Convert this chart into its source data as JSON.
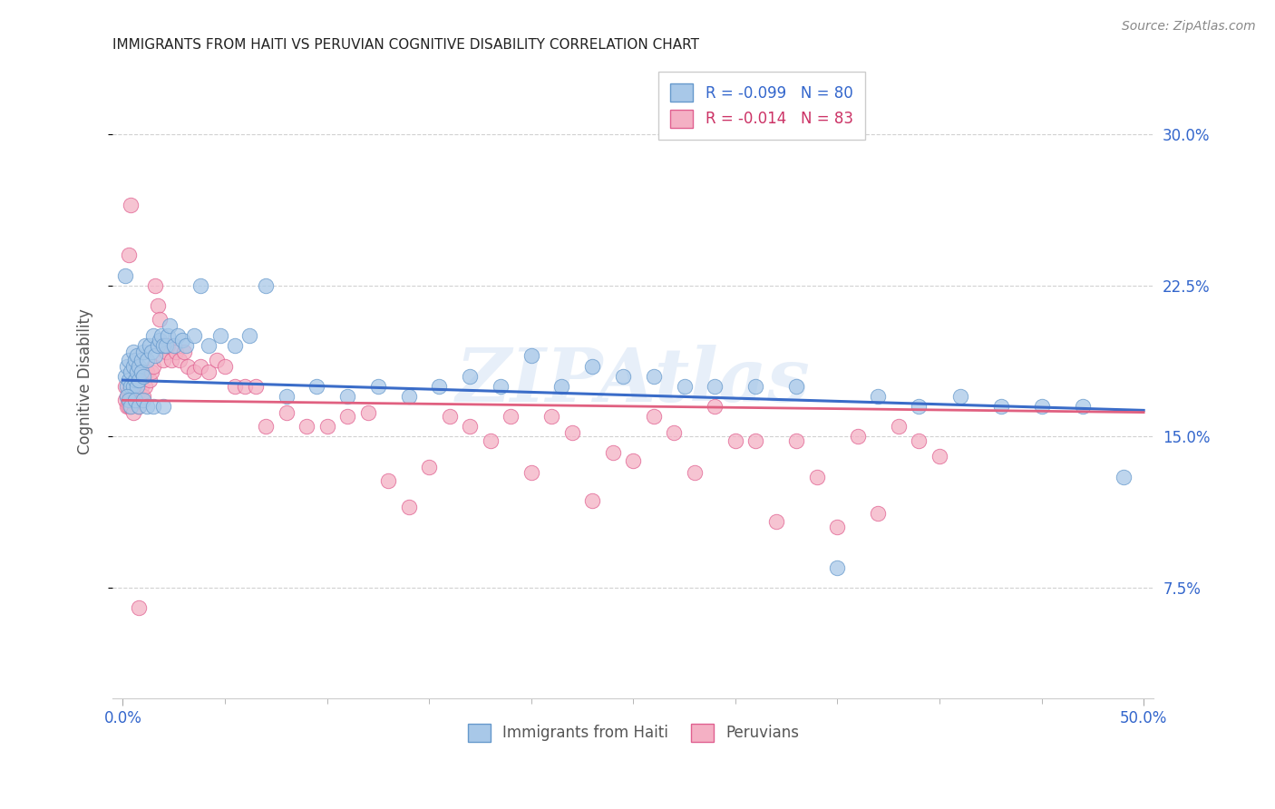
{
  "title": "IMMIGRANTS FROM HAITI VS PERUVIAN COGNITIVE DISABILITY CORRELATION CHART",
  "source": "Source: ZipAtlas.com",
  "ylabel": "Cognitive Disability",
  "xlim": [
    0.0,
    0.5
  ],
  "ylim": [
    0.02,
    0.335
  ],
  "ylabel_ticks": [
    "7.5%",
    "15.0%",
    "22.5%",
    "30.0%"
  ],
  "ylabel_vals": [
    0.075,
    0.15,
    0.225,
    0.3
  ],
  "watermark": "ZIPAtlas",
  "haiti_color": "#a8c8e8",
  "haiti_edge_color": "#6699cc",
  "peru_color": "#f4b0c4",
  "peru_edge_color": "#e06090",
  "haiti_line_color": "#3a6cc8",
  "peru_line_color": "#e06080",
  "grid_color": "#cccccc",
  "bg_color": "#ffffff",
  "haiti_scatter_x": [
    0.001,
    0.001,
    0.002,
    0.002,
    0.003,
    0.003,
    0.004,
    0.004,
    0.005,
    0.005,
    0.005,
    0.006,
    0.006,
    0.007,
    0.007,
    0.007,
    0.008,
    0.008,
    0.009,
    0.009,
    0.01,
    0.01,
    0.011,
    0.012,
    0.013,
    0.014,
    0.015,
    0.016,
    0.017,
    0.018,
    0.019,
    0.02,
    0.021,
    0.022,
    0.023,
    0.025,
    0.027,
    0.029,
    0.031,
    0.035,
    0.038,
    0.042,
    0.048,
    0.055,
    0.062,
    0.07,
    0.08,
    0.095,
    0.11,
    0.125,
    0.14,
    0.155,
    0.17,
    0.185,
    0.2,
    0.215,
    0.23,
    0.245,
    0.26,
    0.275,
    0.29,
    0.31,
    0.33,
    0.35,
    0.37,
    0.39,
    0.41,
    0.43,
    0.45,
    0.47,
    0.49,
    0.002,
    0.003,
    0.004,
    0.006,
    0.008,
    0.01,
    0.012,
    0.015,
    0.02
  ],
  "haiti_scatter_y": [
    0.18,
    0.23,
    0.175,
    0.185,
    0.178,
    0.188,
    0.175,
    0.182,
    0.185,
    0.175,
    0.192,
    0.178,
    0.188,
    0.182,
    0.19,
    0.175,
    0.185,
    0.178,
    0.188,
    0.182,
    0.192,
    0.18,
    0.195,
    0.188,
    0.195,
    0.192,
    0.2,
    0.19,
    0.195,
    0.198,
    0.2,
    0.195,
    0.195,
    0.2,
    0.205,
    0.195,
    0.2,
    0.198,
    0.195,
    0.2,
    0.225,
    0.195,
    0.2,
    0.195,
    0.2,
    0.225,
    0.17,
    0.175,
    0.17,
    0.175,
    0.17,
    0.175,
    0.18,
    0.175,
    0.19,
    0.175,
    0.185,
    0.18,
    0.18,
    0.175,
    0.175,
    0.175,
    0.175,
    0.085,
    0.17,
    0.165,
    0.17,
    0.165,
    0.165,
    0.165,
    0.13,
    0.17,
    0.168,
    0.165,
    0.168,
    0.165,
    0.168,
    0.165,
    0.165,
    0.165
  ],
  "peru_scatter_x": [
    0.001,
    0.001,
    0.002,
    0.002,
    0.003,
    0.003,
    0.004,
    0.004,
    0.005,
    0.005,
    0.005,
    0.006,
    0.006,
    0.007,
    0.007,
    0.008,
    0.008,
    0.009,
    0.009,
    0.01,
    0.01,
    0.011,
    0.012,
    0.013,
    0.014,
    0.015,
    0.016,
    0.017,
    0.018,
    0.019,
    0.02,
    0.021,
    0.022,
    0.024,
    0.026,
    0.028,
    0.03,
    0.032,
    0.035,
    0.038,
    0.042,
    0.046,
    0.05,
    0.055,
    0.06,
    0.065,
    0.07,
    0.08,
    0.09,
    0.1,
    0.11,
    0.12,
    0.13,
    0.14,
    0.15,
    0.16,
    0.17,
    0.18,
    0.19,
    0.2,
    0.21,
    0.22,
    0.23,
    0.24,
    0.25,
    0.26,
    0.27,
    0.28,
    0.29,
    0.3,
    0.31,
    0.32,
    0.33,
    0.34,
    0.35,
    0.36,
    0.37,
    0.38,
    0.39,
    0.4,
    0.003,
    0.004,
    0.008
  ],
  "peru_scatter_y": [
    0.168,
    0.175,
    0.165,
    0.17,
    0.165,
    0.172,
    0.165,
    0.168,
    0.162,
    0.168,
    0.175,
    0.168,
    0.175,
    0.17,
    0.178,
    0.172,
    0.165,
    0.175,
    0.168,
    0.17,
    0.18,
    0.175,
    0.182,
    0.178,
    0.182,
    0.185,
    0.225,
    0.215,
    0.208,
    0.195,
    0.188,
    0.192,
    0.195,
    0.188,
    0.192,
    0.188,
    0.192,
    0.185,
    0.182,
    0.185,
    0.182,
    0.188,
    0.185,
    0.175,
    0.175,
    0.175,
    0.155,
    0.162,
    0.155,
    0.155,
    0.16,
    0.162,
    0.128,
    0.115,
    0.135,
    0.16,
    0.155,
    0.148,
    0.16,
    0.132,
    0.16,
    0.152,
    0.118,
    0.142,
    0.138,
    0.16,
    0.152,
    0.132,
    0.165,
    0.148,
    0.148,
    0.108,
    0.148,
    0.13,
    0.105,
    0.15,
    0.112,
    0.155,
    0.148,
    0.14,
    0.24,
    0.265,
    0.065
  ],
  "haiti_line_x": [
    0.0,
    0.5
  ],
  "haiti_line_y": [
    0.178,
    0.163
  ],
  "peru_line_x": [
    0.0,
    0.5
  ],
  "peru_line_y": [
    0.168,
    0.162
  ]
}
